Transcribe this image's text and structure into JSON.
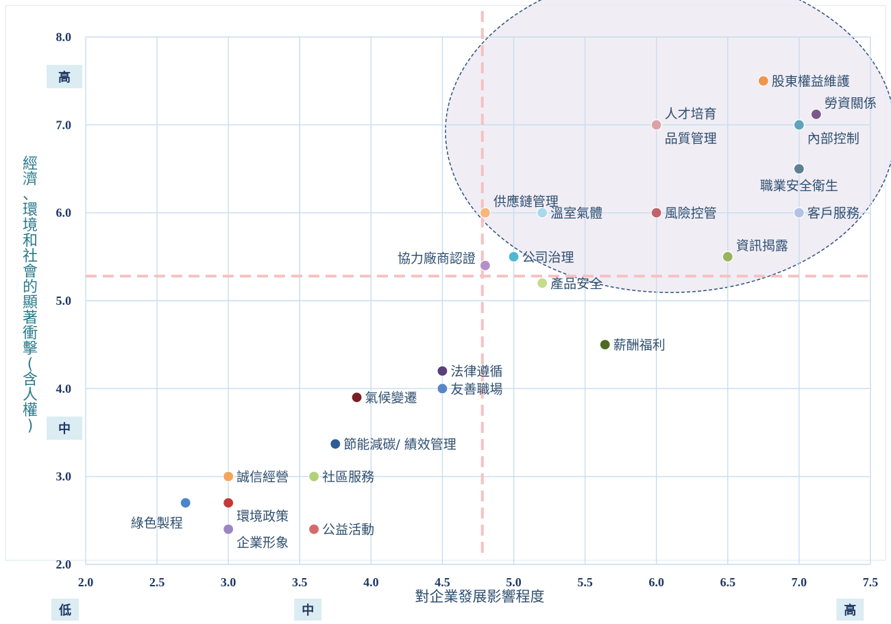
{
  "chart_data": {
    "type": "scatter",
    "title": "",
    "xlabel": "對企業發展影響程度",
    "ylabel": "經濟、環境和社會的顯著衝擊(含人權)",
    "xlim": [
      2.0,
      7.5
    ],
    "ylim": [
      2.0,
      8.0
    ],
    "x_ticks": [
      "2.0",
      "2.5",
      "3.0",
      "3.5",
      "4.0",
      "4.5",
      "5.0",
      "5.5",
      "6.0",
      "6.5",
      "7.0",
      "7.5"
    ],
    "y_ticks": [
      "2.0",
      "3.0",
      "4.0",
      "5.0",
      "6.0",
      "7.0",
      "8.0"
    ],
    "grid": true,
    "threshold_lines": {
      "x": 4.78,
      "y": 5.28
    },
    "x_bands": [
      {
        "label": "低",
        "at": 2.0
      },
      {
        "label": "中",
        "at": 3.5
      },
      {
        "label": "高",
        "at": 7.3
      }
    ],
    "y_bands": [
      {
        "label": "高",
        "at": 7.55
      },
      {
        "label": "中",
        "at": 3.55
      }
    ],
    "points": [
      {
        "label": "股東權益維護",
        "x": 6.75,
        "y": 7.5,
        "color": "#f0964c",
        "anchor": "right"
      },
      {
        "label": "勞資關係",
        "x": 7.12,
        "y": 7.12,
        "color": "#7b5a8a",
        "anchor": "above-right"
      },
      {
        "label": "人才培育",
        "x": 6.0,
        "y": 7.0,
        "color": "#dba3a8",
        "anchor": "above-right"
      },
      {
        "label": "品質管理",
        "x": 6.0,
        "y": 7.0,
        "color": "#dba3a8",
        "anchor": "below-right"
      },
      {
        "label": "內部控制",
        "x": 7.0,
        "y": 7.0,
        "color": "#5fa3bc",
        "anchor": "below-right"
      },
      {
        "label": "職業安全衛生",
        "x": 7.0,
        "y": 6.5,
        "color": "#5d7f94",
        "anchor": "below"
      },
      {
        "label": "供應鏈管理",
        "x": 4.8,
        "y": 6.0,
        "color": "#f7b77b",
        "anchor": "above-right"
      },
      {
        "label": "溫室氣體",
        "x": 5.2,
        "y": 6.0,
        "color": "#a8d8ea",
        "anchor": "right"
      },
      {
        "label": "風險控管",
        "x": 6.0,
        "y": 6.0,
        "color": "#c0646b",
        "anchor": "right"
      },
      {
        "label": "客戶服務",
        "x": 7.0,
        "y": 6.0,
        "color": "#b3c3e6",
        "anchor": "right"
      },
      {
        "label": "協力廠商認證",
        "x": 4.8,
        "y": 5.4,
        "color": "#b490c8",
        "anchor": "above-left"
      },
      {
        "label": "公司治理",
        "x": 5.0,
        "y": 5.5,
        "color": "#4fb7d4",
        "anchor": "right"
      },
      {
        "label": "資訊揭露",
        "x": 6.5,
        "y": 5.5,
        "color": "#98b45c",
        "anchor": "above-right"
      },
      {
        "label": "產品安全",
        "x": 5.2,
        "y": 5.2,
        "color": "#c4dc8c",
        "anchor": "right"
      },
      {
        "label": "薪酬福利",
        "x": 5.64,
        "y": 4.5,
        "color": "#4e6b24",
        "anchor": "right"
      },
      {
        "label": "法律遵循",
        "x": 4.5,
        "y": 4.2,
        "color": "#5b3f7c",
        "anchor": "right"
      },
      {
        "label": "友善職場",
        "x": 4.5,
        "y": 4.0,
        "color": "#5a86c8",
        "anchor": "right"
      },
      {
        "label": "氣候變遷",
        "x": 3.9,
        "y": 3.9,
        "color": "#7a1e24",
        "anchor": "right"
      },
      {
        "label": "節能減碳/ 績效管理",
        "x": 3.75,
        "y": 3.37,
        "color": "#2e5c94",
        "anchor": "right"
      },
      {
        "label": "誠信經營",
        "x": 3.0,
        "y": 3.0,
        "color": "#f5a55a",
        "anchor": "right"
      },
      {
        "label": "社區服務",
        "x": 3.6,
        "y": 3.0,
        "color": "#b2d07a",
        "anchor": "right"
      },
      {
        "label": "綠色製程",
        "x": 2.7,
        "y": 2.7,
        "color": "#4a86c8",
        "anchor": "below-left"
      },
      {
        "label": "環境政策",
        "x": 3.0,
        "y": 2.7,
        "color": "#c4383a",
        "anchor": "below-right"
      },
      {
        "label": "企業形象",
        "x": 3.0,
        "y": 2.4,
        "color": "#9a86c4",
        "anchor": "below-right"
      },
      {
        "label": "公益活動",
        "x": 3.6,
        "y": 2.4,
        "color": "#d46a6a",
        "anchor": "right"
      }
    ]
  }
}
